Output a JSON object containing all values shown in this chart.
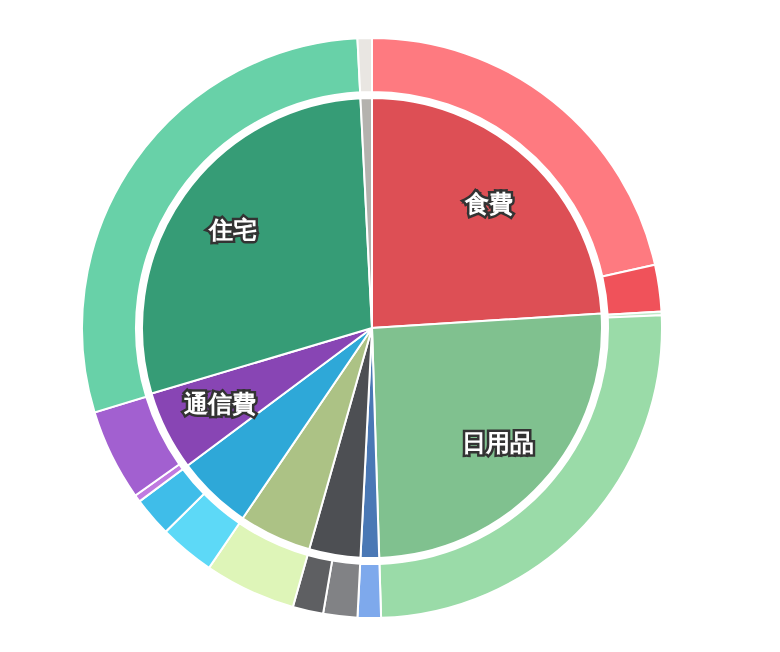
{
  "chart_data": [
    {
      "type": "pie",
      "categories": [
        "食費",
        "日用品",
        null,
        null,
        null,
        null,
        "通信費",
        "住宅",
        null
      ],
      "values": [
        24.0,
        25.5,
        1.3,
        3.6,
        5.1,
        5.3,
        5.6,
        28.8,
        0.8
      ],
      "colors": [
        "#dd4f55",
        "#80c18f",
        "#4a78b5",
        "#4d4f53",
        "#acc285",
        "#2ea8d8",
        "#8845b4",
        "#369c76",
        "#b4b2ae"
      ]
    },
    {
      "type": "donut",
      "categories": [
        null,
        null,
        null,
        null,
        null,
        null,
        null,
        null,
        null,
        null,
        null,
        null,
        null,
        null
      ],
      "values": [
        21.5,
        2.6,
        0.2,
        25.2,
        1.3,
        1.9,
        1.7,
        5.1,
        3.1,
        2.2,
        0.4,
        5.1,
        28.9,
        0.8
      ],
      "colors": [
        "#fe7a80",
        "#f0525a",
        "#c0e8c8",
        "#9adba8",
        "#7ea9ec",
        "#818285",
        "#5e5f62",
        "#def5b8",
        "#5dd9f7",
        "#3fbde9",
        "#c07ae0",
        "#a260d0",
        "#68d1a8",
        "#e9e6e2"
      ]
    }
  ]
}
